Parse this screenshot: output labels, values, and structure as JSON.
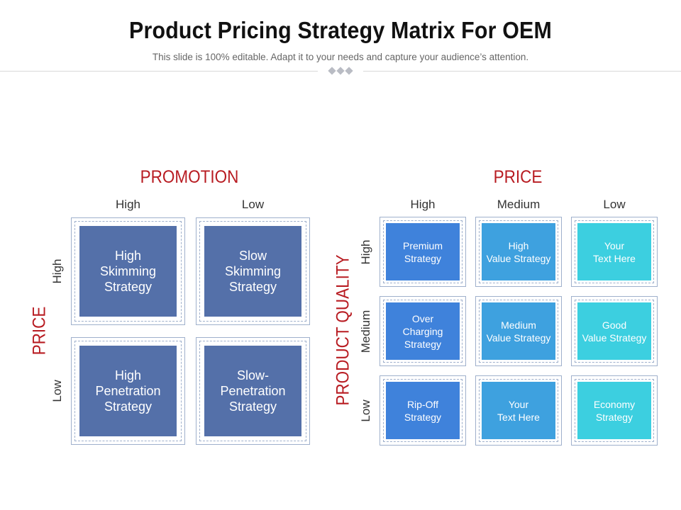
{
  "header": {
    "title": "Product Pricing Strategy Matrix For OEM",
    "subtitle": "This slide is 100% editable. Adapt it to your needs and capture your audience’s attention."
  },
  "left_matrix": {
    "top_axis_title": "PROMOTION",
    "side_axis_title": "PRICE",
    "columns": [
      "High",
      "Low"
    ],
    "rows": [
      "High",
      "Low"
    ],
    "cells": [
      [
        "High\nSkimming\nStrategy",
        "Slow\nSkimming\nStrategy"
      ],
      [
        "High\nPenetration\nStrategy",
        "Slow-\nPenetration\nStrategy"
      ]
    ],
    "color": "#5470a9"
  },
  "right_matrix": {
    "top_axis_title": "PRICE",
    "side_axis_title": "PRODUCT QUALITY",
    "columns": [
      "High",
      "Medium",
      "Low"
    ],
    "rows": [
      "High",
      "Medium",
      "Low"
    ],
    "cells": [
      [
        "Premium\nStrategy",
        "High\nValue Strategy",
        "Your\nText Here"
      ],
      [
        "Over\nCharging\nStrategy",
        "Medium\nValue Strategy",
        "Good\nValue Strategy"
      ],
      [
        "Rip-Off\nStrategy",
        "Your\nText Here",
        "Economy\nStrategy"
      ]
    ],
    "column_colors": [
      "#3f82db",
      "#3ea1df",
      "#3ccfe0"
    ]
  },
  "colors": {
    "accent_red": "#b81c22",
    "frame": "#9fb0cc"
  }
}
